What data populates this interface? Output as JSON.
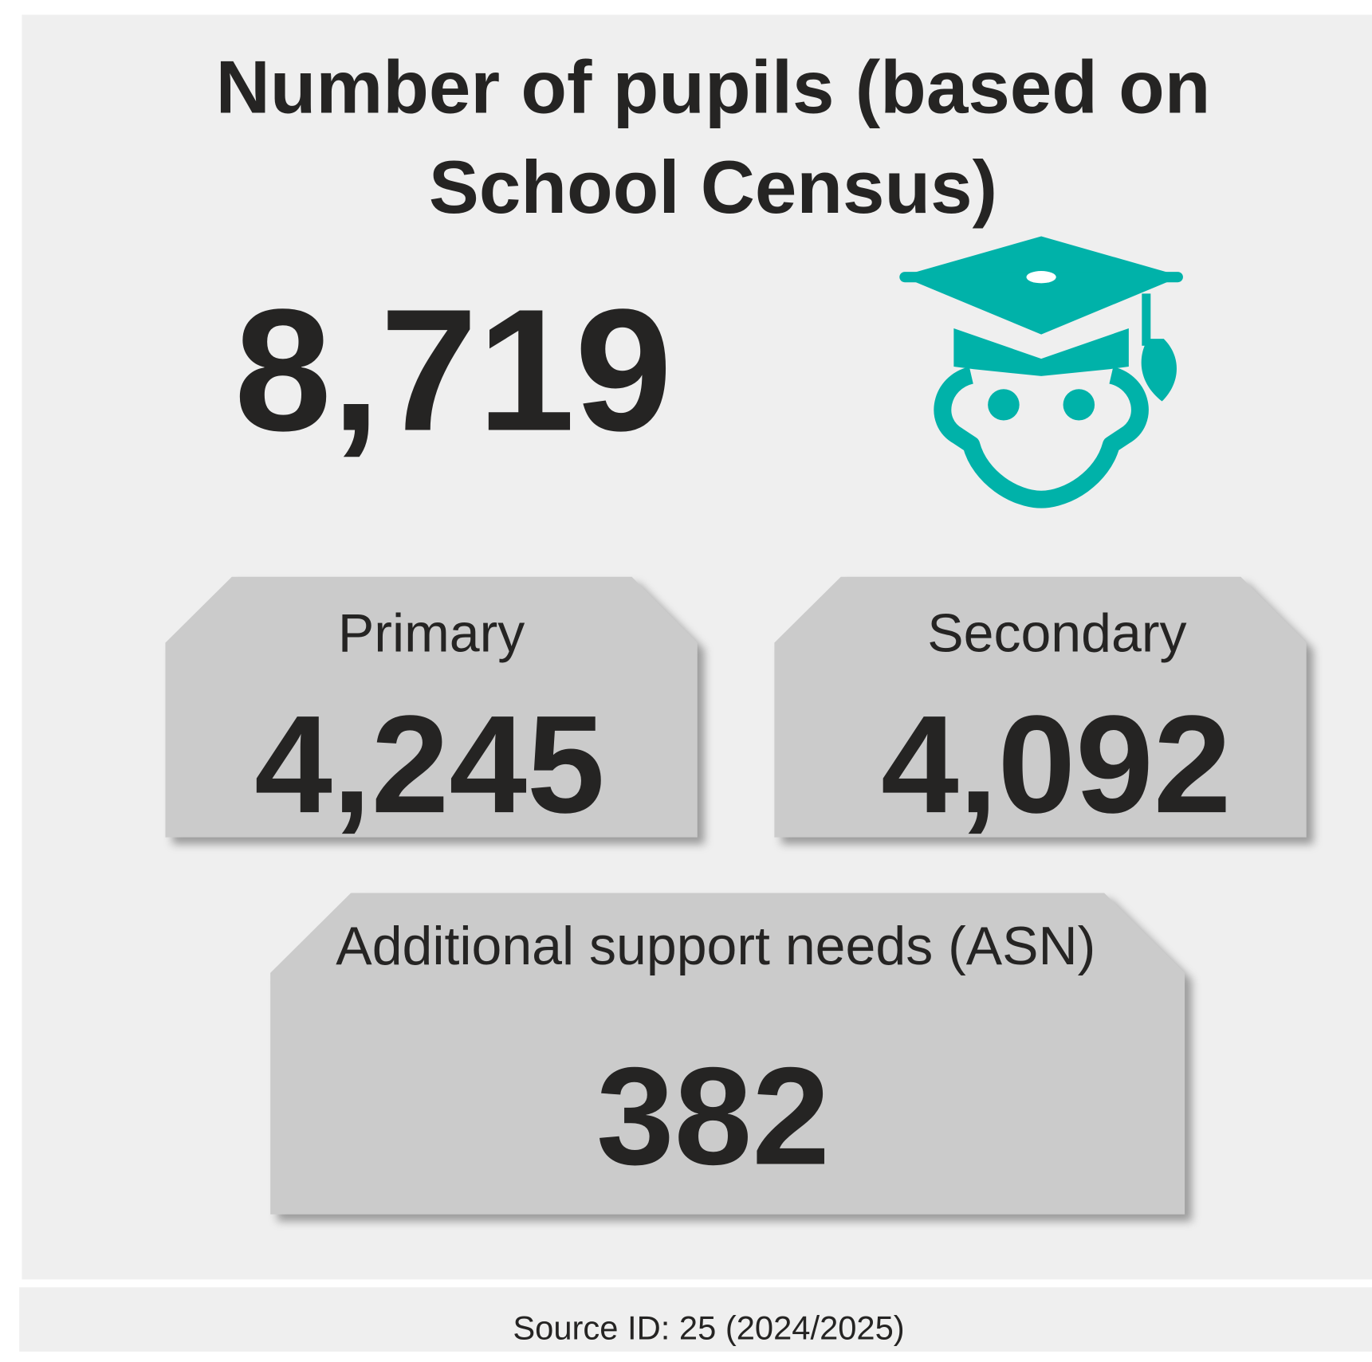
{
  "header": {
    "title_lines": [
      "Number of pupils (based on",
      "School Census)"
    ],
    "total": "8,719"
  },
  "cards": [
    {
      "label": "Primary",
      "value": "4,245"
    },
    {
      "label": "Secondary",
      "value": "4,092"
    },
    {
      "label": "Additional support needs (ASN)",
      "value": "382"
    }
  ],
  "footer": {
    "source": "Source ID: 25 (2024/2025)"
  }
}
